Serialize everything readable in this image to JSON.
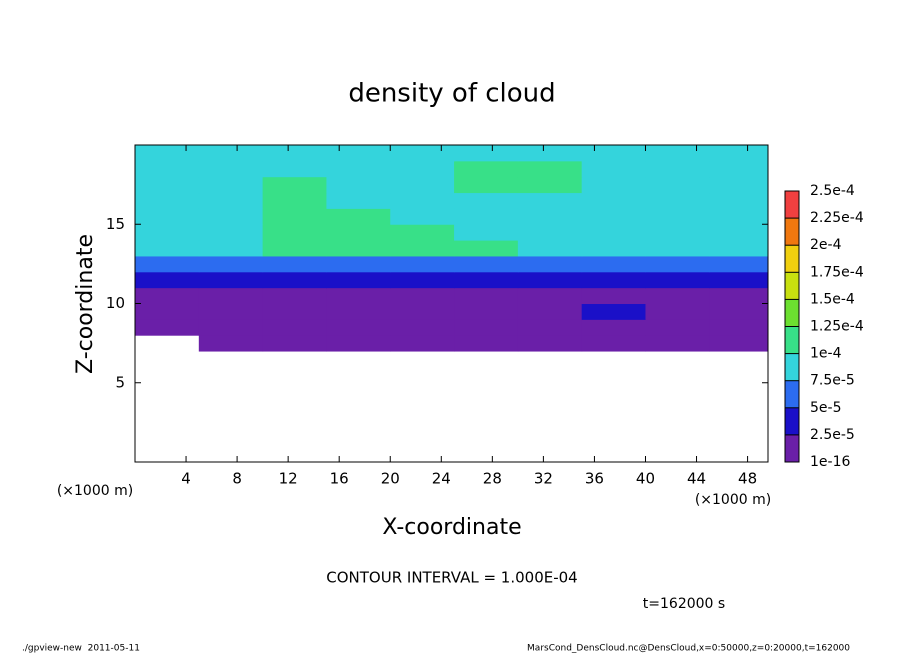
{
  "chart_data": {
    "type": "heatmap",
    "title": "density of cloud",
    "x_label": "X-coordinate",
    "y_label": "Z-coordinate",
    "x_unit": "(×1000 m)",
    "y_unit": "(×1000 m)",
    "xlim": [
      0,
      49.6
    ],
    "ylim": [
      0,
      20
    ],
    "xticks": [
      4,
      8,
      12,
      16,
      20,
      24,
      28,
      32,
      36,
      40,
      44,
      48
    ],
    "yticks": [
      5,
      10,
      15
    ],
    "x": [
      2.5,
      7.5,
      12.5,
      17.5,
      22.5,
      27.5,
      32.5,
      37.5,
      42.5,
      47.5
    ],
    "y": [
      0.5,
      1.5,
      2.5,
      3.5,
      4.5,
      5.5,
      6.5,
      7.5,
      8.5,
      9.5,
      10.5,
      11.5,
      12.5,
      13.5,
      14.5,
      15.5,
      16.5,
      17.5,
      18.5,
      19.5
    ],
    "values": [
      [
        null,
        null,
        null,
        null,
        null,
        null,
        null,
        null,
        null,
        null
      ],
      [
        null,
        null,
        null,
        null,
        null,
        null,
        null,
        null,
        null,
        null
      ],
      [
        null,
        null,
        null,
        null,
        null,
        null,
        null,
        null,
        null,
        null
      ],
      [
        null,
        null,
        null,
        null,
        null,
        null,
        null,
        null,
        null,
        null
      ],
      [
        null,
        null,
        null,
        null,
        null,
        null,
        null,
        null,
        null,
        null
      ],
      [
        null,
        null,
        null,
        null,
        null,
        null,
        null,
        null,
        null,
        null
      ],
      [
        null,
        null,
        null,
        null,
        null,
        null,
        null,
        null,
        null,
        null
      ],
      [
        null,
        1e-05,
        1e-05,
        1e-05,
        1e-05,
        1e-05,
        1e-05,
        1e-05,
        1e-05,
        1e-05
      ],
      [
        1e-05,
        1e-05,
        1e-05,
        1e-05,
        1e-05,
        1e-05,
        1e-05,
        1e-05,
        1e-05,
        1e-05
      ],
      [
        1e-05,
        1e-05,
        1e-05,
        1e-05,
        1e-05,
        1e-05,
        1e-05,
        4e-05,
        1e-05,
        1e-05
      ],
      [
        1e-05,
        1e-05,
        1e-05,
        1e-05,
        1e-05,
        1e-05,
        1e-05,
        1e-05,
        1e-05,
        1e-05
      ],
      [
        3e-05,
        3e-05,
        3e-05,
        3e-05,
        3e-05,
        3e-05,
        3e-05,
        3e-05,
        3e-05,
        3e-05
      ],
      [
        6e-05,
        6e-05,
        6e-05,
        6e-05,
        6e-05,
        7e-05,
        7e-05,
        6e-05,
        6e-05,
        6e-05
      ],
      [
        9e-05,
        9e-05,
        0.00011,
        0.00011,
        0.00011,
        0.00011,
        9e-05,
        9e-05,
        9e-05,
        9e-05
      ],
      [
        8e-05,
        9e-05,
        0.00012,
        0.00011,
        0.00011,
        9e-05,
        9e-05,
        9e-05,
        9e-05,
        8e-05
      ],
      [
        9e-05,
        9e-05,
        0.00012,
        0.00011,
        9e-05,
        9e-05,
        9e-05,
        9e-05,
        9e-05,
        9e-05
      ],
      [
        9e-05,
        9e-05,
        0.00012,
        9e-05,
        9e-05,
        9e-05,
        9e-05,
        9e-05,
        9e-05,
        9e-05
      ],
      [
        9e-05,
        9e-05,
        0.00011,
        9e-05,
        9e-05,
        0.00011,
        0.00011,
        9e-05,
        9e-05,
        9e-05
      ],
      [
        8e-05,
        8e-05,
        9e-05,
        9e-05,
        9e-05,
        0.00011,
        0.00011,
        9e-05,
        8e-05,
        8e-05
      ],
      [
        8e-05,
        8e-05,
        8e-05,
        8e-05,
        8e-05,
        8e-05,
        8e-05,
        8e-05,
        8e-05,
        8e-05
      ]
    ],
    "colorbar": {
      "ticks": [
        {
          "value": 1e-16,
          "label": "1e-16"
        },
        {
          "value": 2.5e-05,
          "label": "2.5e-5"
        },
        {
          "value": 5e-05,
          "label": "5e-5"
        },
        {
          "value": 7.5e-05,
          "label": "7.5e-5"
        },
        {
          "value": 0.0001,
          "label": "1e-4"
        },
        {
          "value": 0.000125,
          "label": "1.25e-4"
        },
        {
          "value": 0.00015,
          "label": "1.5e-4"
        },
        {
          "value": 0.000175,
          "label": "1.75e-4"
        },
        {
          "value": 0.0002,
          "label": "2e-4"
        },
        {
          "value": 0.000225,
          "label": "2.25e-4"
        },
        {
          "value": 0.00025,
          "label": "2.5e-4"
        }
      ],
      "colors": [
        "#6a1fa8",
        "#1a10c8",
        "#2c6cf0",
        "#34d4dc",
        "#38e088",
        "#6ce030",
        "#c8e010",
        "#f0d010",
        "#f07810",
        "#f04040"
      ]
    },
    "annotation": "CONTOUR INTERVAL = 1.000E-04",
    "time_label": "t=162000 s",
    "footer_left": "./gpview-new  2011-05-11",
    "footer_right": "MarsCond_DensCloud.nc@DensCloud,x=0:50000,z=0:20000,t=162000"
  }
}
